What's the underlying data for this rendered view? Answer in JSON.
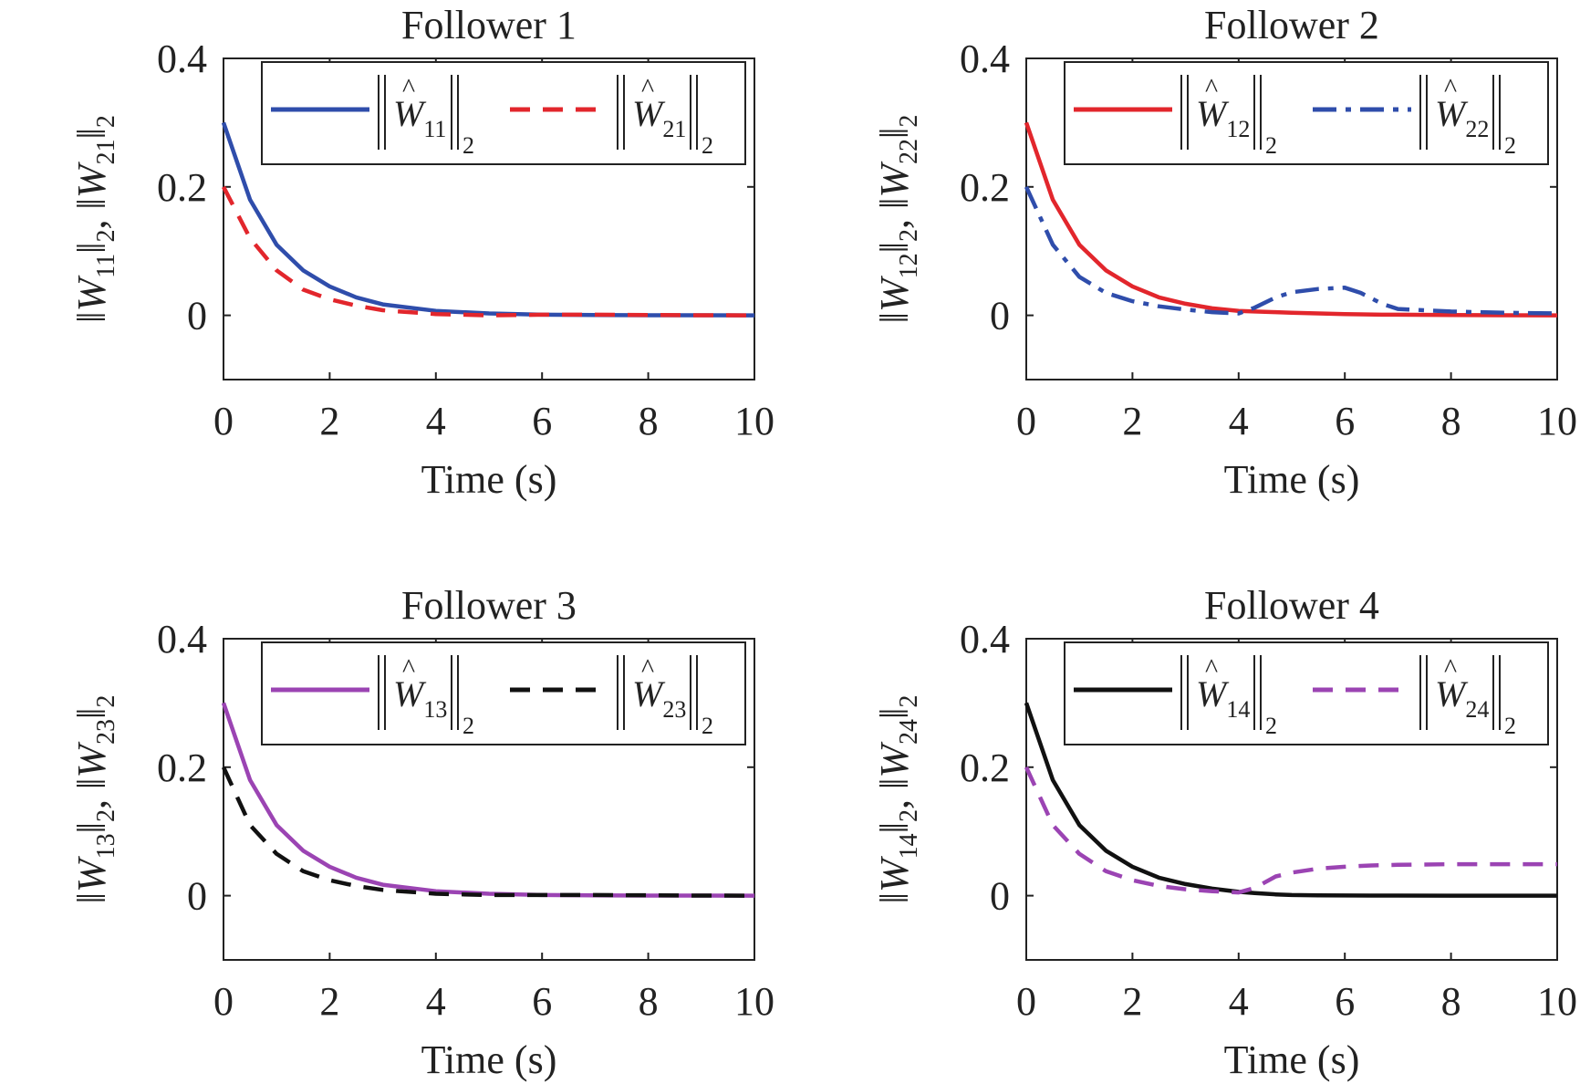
{
  "chart_data": [
    {
      "type": "line",
      "title": "Follower 1",
      "xlabel": "Time (s)",
      "ylabel": {
        "w1": "W",
        "sub1": "11",
        "w2": "W",
        "sub2": "21",
        "norm": "2"
      },
      "xlim": [
        0,
        10
      ],
      "ylim": [
        -0.1,
        0.4
      ],
      "xticks": [
        "0",
        "2",
        "4",
        "6",
        "8",
        "10"
      ],
      "yticks": [
        "0",
        "0.2",
        "0.4"
      ],
      "ytick_values": [
        0,
        0.2,
        0.4
      ],
      "legend_position": "top",
      "x": [
        0,
        0.5,
        1,
        1.5,
        2,
        2.5,
        3,
        4,
        5,
        6,
        7,
        8,
        9,
        10
      ],
      "series": [
        {
          "name": "||Ŵ11||2",
          "w": "W",
          "sub": "11",
          "norm": "2",
          "color": "#2f4dab",
          "dash": "solid",
          "values": [
            0.3,
            0.18,
            0.11,
            0.07,
            0.045,
            0.028,
            0.017,
            0.007,
            0.003,
            0.001,
            0.0005,
            0.0002,
            0.0001,
            0
          ]
        },
        {
          "name": "||Ŵ21||2",
          "w": "W",
          "sub": "21",
          "norm": "2",
          "color": "#e2262c",
          "dash": "dashed",
          "values": [
            0.2,
            0.12,
            0.07,
            0.04,
            0.025,
            0.015,
            0.008,
            0.002,
            0.0,
            0.001,
            0.001,
            0.0005,
            0.0002,
            0
          ]
        }
      ]
    },
    {
      "type": "line",
      "title": "Follower 2",
      "xlabel": "Time (s)",
      "ylabel": {
        "w1": "W",
        "sub1": "12",
        "w2": "W",
        "sub2": "22",
        "norm": "2"
      },
      "xlim": [
        0,
        10
      ],
      "ylim": [
        -0.1,
        0.4
      ],
      "xticks": [
        "0",
        "2",
        "4",
        "6",
        "8",
        "10"
      ],
      "yticks": [
        "0",
        "0.2",
        "0.4"
      ],
      "ytick_values": [
        0,
        0.2,
        0.4
      ],
      "legend_position": "top",
      "x": [
        0,
        0.5,
        1,
        1.5,
        2,
        2.5,
        3,
        3.5,
        4,
        4.3,
        4.7,
        5,
        5.5,
        6,
        6.3,
        6.7,
        7,
        8,
        9,
        10
      ],
      "series": [
        {
          "name": "||Ŵ12||2",
          "w": "W",
          "sub": "12",
          "norm": "2",
          "color": "#e2262c",
          "dash": "solid",
          "values": [
            0.3,
            0.18,
            0.11,
            0.07,
            0.045,
            0.028,
            0.018,
            0.011,
            0.007,
            0.006,
            0.005,
            0.004,
            0.003,
            0.002,
            0.0015,
            0.001,
            0.001,
            0.0005,
            0.0002,
            0
          ]
        },
        {
          "name": "||Ŵ22||2",
          "w": "W",
          "sub": "22",
          "norm": "2",
          "color": "#2f4dab",
          "dash": "dashdot",
          "values": [
            0.2,
            0.11,
            0.06,
            0.035,
            0.022,
            0.014,
            0.009,
            0.005,
            0.003,
            0.012,
            0.028,
            0.036,
            0.041,
            0.043,
            0.035,
            0.018,
            0.01,
            0.006,
            0.004,
            0.003
          ]
        }
      ]
    },
    {
      "type": "line",
      "title": "Follower 3",
      "xlabel": "Time (s)",
      "ylabel": {
        "w1": "W",
        "sub1": "13",
        "w2": "W",
        "sub2": "23",
        "norm": "2"
      },
      "xlim": [
        0,
        10
      ],
      "ylim": [
        -0.1,
        0.4
      ],
      "xticks": [
        "0",
        "2",
        "4",
        "6",
        "8",
        "10"
      ],
      "yticks": [
        "0",
        "0.2",
        "0.4"
      ],
      "ytick_values": [
        0,
        0.2,
        0.4
      ],
      "legend_position": "top",
      "x": [
        0,
        0.5,
        1,
        1.5,
        2,
        2.5,
        3,
        4,
        5,
        6,
        7,
        8,
        9,
        10
      ],
      "series": [
        {
          "name": "||Ŵ13||2",
          "w": "W",
          "sub": "13",
          "norm": "2",
          "color": "#9b44b3",
          "dash": "solid",
          "values": [
            0.3,
            0.18,
            0.11,
            0.07,
            0.045,
            0.028,
            0.017,
            0.007,
            0.003,
            0.001,
            0.0005,
            0.0002,
            0.0001,
            0
          ]
        },
        {
          "name": "||Ŵ23||2",
          "w": "W",
          "sub": "23",
          "norm": "2",
          "color": "#111111",
          "dash": "dashed",
          "values": [
            0.2,
            0.11,
            0.065,
            0.038,
            0.024,
            0.015,
            0.009,
            0.003,
            0.001,
            0.001,
            0.001,
            0.0005,
            0.0002,
            0
          ]
        }
      ]
    },
    {
      "type": "line",
      "title": "Follower 4",
      "xlabel": "Time (s)",
      "ylabel": {
        "w1": "W",
        "sub1": "14",
        "w2": "W",
        "sub2": "24",
        "norm": "2"
      },
      "xlim": [
        0,
        10
      ],
      "ylim": [
        -0.1,
        0.4
      ],
      "xticks": [
        "0",
        "2",
        "4",
        "6",
        "8",
        "10"
      ],
      "yticks": [
        "0",
        "0.2",
        "0.4"
      ],
      "ytick_values": [
        0,
        0.2,
        0.4
      ],
      "legend_position": "top",
      "x": [
        0,
        0.5,
        1,
        1.5,
        2,
        2.5,
        3,
        3.5,
        4,
        4.3,
        4.7,
        5,
        5.5,
        6,
        6.5,
        7,
        8,
        9,
        10
      ],
      "series": [
        {
          "name": "||Ŵ14||2",
          "w": "W",
          "sub": "14",
          "norm": "2",
          "color": "#111111",
          "dash": "solid",
          "values": [
            0.3,
            0.18,
            0.11,
            0.07,
            0.045,
            0.028,
            0.018,
            0.011,
            0.006,
            0.004,
            0.002,
            0.001,
            0.0005,
            0.0003,
            0.0002,
            0.0001,
            0,
            0,
            0
          ]
        },
        {
          "name": "||Ŵ24||2",
          "w": "W",
          "sub": "24",
          "norm": "2",
          "color": "#9b44b3",
          "dash": "dashed",
          "values": [
            0.2,
            0.11,
            0.065,
            0.038,
            0.024,
            0.015,
            0.01,
            0.007,
            0.005,
            0.012,
            0.03,
            0.036,
            0.042,
            0.045,
            0.047,
            0.048,
            0.049,
            0.049,
            0.049
          ]
        }
      ]
    }
  ]
}
